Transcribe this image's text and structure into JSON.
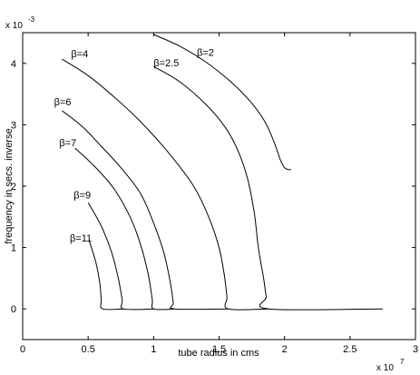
{
  "chart_data": {
    "type": "line",
    "title": "",
    "xlabel": "tube radius in cms",
    "ylabel": "frequency in secs. inverse",
    "x_multiplier_label": "x 10",
    "x_multiplier_exp": "7",
    "y_multiplier_label": "x 10",
    "y_multiplier_exp": "-3",
    "xlim": [
      0,
      3
    ],
    "ylim": [
      -0.5,
      4.5
    ],
    "xticks": [
      0,
      0.5,
      1,
      1.5,
      2,
      2.5,
      3
    ],
    "xtick_labels": [
      "0",
      "0.5",
      "1",
      "1.5",
      "2",
      "2.5",
      "3"
    ],
    "yticks": [
      0,
      1,
      2,
      3,
      4
    ],
    "ytick_labels": [
      "0",
      "1",
      "2",
      "3",
      "4"
    ],
    "grid": false,
    "legend": "none",
    "series": [
      {
        "name": "β=2",
        "label_at": [
          1.33,
          4.12
        ],
        "points": [
          [
            1.0,
            4.47
          ],
          [
            1.2,
            4.28
          ],
          [
            1.4,
            4.02
          ],
          [
            1.6,
            3.68
          ],
          [
            1.75,
            3.35
          ],
          [
            1.85,
            3.05
          ],
          [
            1.92,
            2.72
          ],
          [
            1.97,
            2.42
          ],
          [
            2.0,
            2.3
          ],
          [
            2.03,
            2.27
          ],
          [
            2.05,
            2.27
          ]
        ]
      },
      {
        "name": "β=2.5",
        "label_at": [
          1.0,
          3.95
        ],
        "points": [
          [
            1.0,
            3.95
          ],
          [
            1.2,
            3.7
          ],
          [
            1.4,
            3.33
          ],
          [
            1.55,
            2.95
          ],
          [
            1.65,
            2.55
          ],
          [
            1.72,
            2.1
          ],
          [
            1.77,
            1.55
          ],
          [
            1.8,
            1.0
          ],
          [
            1.84,
            0.5
          ],
          [
            1.86,
            0.2
          ],
          [
            1.88,
            0.0
          ],
          [
            2.75,
            0.0
          ]
        ]
      },
      {
        "name": "β=4",
        "label_at": [
          0.37,
          4.1
        ],
        "points": [
          [
            0.3,
            4.07
          ],
          [
            0.5,
            3.8
          ],
          [
            0.7,
            3.45
          ],
          [
            0.9,
            3.05
          ],
          [
            1.1,
            2.58
          ],
          [
            1.3,
            2.02
          ],
          [
            1.42,
            1.5
          ],
          [
            1.5,
            1.0
          ],
          [
            1.54,
            0.55
          ],
          [
            1.56,
            0.2
          ],
          [
            1.57,
            0.0
          ],
          [
            1.88,
            0.0
          ]
        ]
      },
      {
        "name": "β=6",
        "label_at": [
          0.24,
          3.32
        ],
        "points": [
          [
            0.3,
            3.23
          ],
          [
            0.45,
            2.98
          ],
          [
            0.6,
            2.65
          ],
          [
            0.75,
            2.3
          ],
          [
            0.9,
            1.88
          ],
          [
            1.0,
            1.4
          ],
          [
            1.08,
            0.9
          ],
          [
            1.13,
            0.4
          ],
          [
            1.15,
            0.1
          ],
          [
            1.16,
            0.0
          ],
          [
            1.57,
            0.0
          ]
        ]
      },
      {
        "name": "β=7",
        "label_at": [
          0.28,
          2.65
        ],
        "points": [
          [
            0.4,
            2.62
          ],
          [
            0.55,
            2.32
          ],
          [
            0.7,
            1.95
          ],
          [
            0.82,
            1.5
          ],
          [
            0.9,
            1.05
          ],
          [
            0.96,
            0.55
          ],
          [
            0.99,
            0.15
          ],
          [
            1.0,
            0.0
          ],
          [
            1.16,
            0.0
          ]
        ]
      },
      {
        "name": "β=9",
        "label_at": [
          0.39,
          1.8
        ],
        "points": [
          [
            0.5,
            1.73
          ],
          [
            0.6,
            1.35
          ],
          [
            0.68,
            0.92
          ],
          [
            0.73,
            0.5
          ],
          [
            0.76,
            0.15
          ],
          [
            0.77,
            0.0
          ],
          [
            1.0,
            0.0
          ]
        ]
      },
      {
        "name": "β=11",
        "label_at": [
          0.36,
          1.1
        ],
        "points": [
          [
            0.51,
            1.1
          ],
          [
            0.56,
            0.75
          ],
          [
            0.59,
            0.4
          ],
          [
            0.6,
            0.15
          ],
          [
            0.61,
            0.0
          ],
          [
            0.77,
            0.0
          ]
        ]
      }
    ]
  }
}
